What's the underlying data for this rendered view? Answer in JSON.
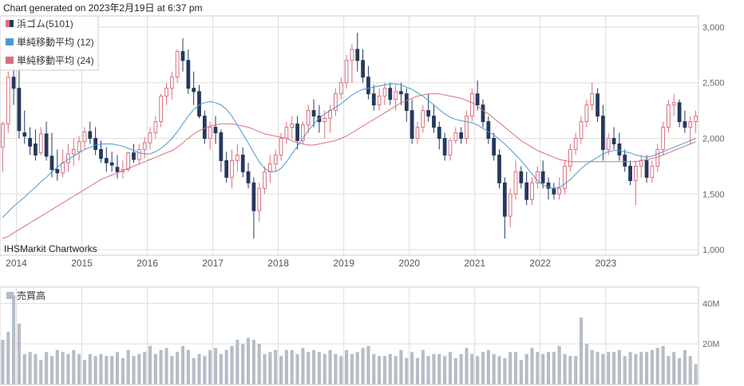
{
  "header": {
    "generated": "Chart generated on 2023年2月19日 at 6:37 pm"
  },
  "watermark": "IHSMarkit Chartworks",
  "colors": {
    "up": "#d9707e",
    "down": "#26385e",
    "ma12": "#4a9ad0",
    "ma24": "#d9707e",
    "volume": "#b5bdc6",
    "grid": "#dddddd",
    "axis": "#9a9a9a"
  },
  "chart_data": [
    {
      "type": "candlestick",
      "interval": "monthly",
      "legend_position": "top-left",
      "legend": {
        "price": "浜ゴム(5101)",
        "ma12": "単純移動平均 (12)",
        "ma24": "単純移動平均 (24)"
      },
      "x_labels": [
        "2014",
        "2015",
        "2016",
        "2017",
        "2018",
        "2019",
        "2020",
        "2021",
        "2022",
        "2023"
      ],
      "y_ticks": [
        1000,
        1500,
        2000,
        2500,
        3000
      ],
      "y_tick_labels": [
        "1,000",
        "1,500",
        "2,000",
        "2,500",
        "3,000"
      ],
      "ylim": [
        950,
        3100
      ],
      "grid": true,
      "candles": [
        [
          1920,
          2150,
          1700,
          2130
        ],
        [
          2130,
          2600,
          2050,
          2550
        ],
        [
          2550,
          2800,
          2300,
          2450
        ],
        [
          2450,
          2650,
          2000,
          2070
        ],
        [
          2050,
          2250,
          1950,
          2020
        ],
        [
          2000,
          2100,
          1850,
          1930
        ],
        [
          1950,
          2080,
          1800,
          1850
        ],
        [
          1870,
          2100,
          1850,
          2040
        ],
        [
          2040,
          2150,
          1800,
          1840
        ],
        [
          1840,
          2050,
          1650,
          1720
        ],
        [
          1720,
          1900,
          1620,
          1690
        ],
        [
          1690,
          1900,
          1650,
          1780
        ],
        [
          1780,
          1950,
          1700,
          1860
        ],
        [
          1860,
          2000,
          1750,
          1900
        ],
        [
          1880,
          2020,
          1800,
          1970
        ],
        [
          1970,
          2100,
          1900,
          2060
        ],
        [
          2060,
          2150,
          1950,
          2000
        ],
        [
          2000,
          2100,
          1850,
          1900
        ],
        [
          1900,
          1980,
          1780,
          1820
        ],
        [
          1820,
          1920,
          1700,
          1780
        ],
        [
          1780,
          1880,
          1700,
          1760
        ],
        [
          1740,
          1850,
          1640,
          1700
        ],
        [
          1700,
          1800,
          1640,
          1720
        ],
        [
          1720,
          1880,
          1700,
          1870
        ],
        [
          1870,
          1950,
          1780,
          1810
        ],
        [
          1810,
          1950,
          1760,
          1900
        ],
        [
          1900,
          2010,
          1820,
          1960
        ],
        [
          1960,
          2100,
          1900,
          2050
        ],
        [
          2050,
          2200,
          2000,
          2150
        ],
        [
          2150,
          2400,
          2100,
          2380
        ],
        [
          2380,
          2500,
          2300,
          2450
        ],
        [
          2450,
          2600,
          2350,
          2550
        ],
        [
          2550,
          2800,
          2500,
          2780
        ],
        [
          2780,
          2900,
          2600,
          2700
        ],
        [
          2700,
          2800,
          2400,
          2450
        ],
        [
          2450,
          2600,
          2300,
          2420
        ],
        [
          2420,
          2480,
          2180,
          2200
        ],
        [
          2200,
          2250,
          1950,
          2000
        ],
        [
          2000,
          2150,
          1900,
          2100
        ],
        [
          2100,
          2200,
          1950,
          2050
        ],
        [
          2050,
          2080,
          1700,
          1800
        ],
        [
          1800,
          1880,
          1600,
          1650
        ],
        [
          1650,
          1900,
          1550,
          1800
        ],
        [
          1800,
          1950,
          1700,
          1850
        ],
        [
          1850,
          1920,
          1650,
          1700
        ],
        [
          1700,
          1780,
          1550,
          1600
        ],
        [
          1600,
          1650,
          1100,
          1350
        ],
        [
          1350,
          1600,
          1250,
          1550
        ],
        [
          1550,
          1750,
          1500,
          1700
        ],
        [
          1700,
          1850,
          1600,
          1770
        ],
        [
          1770,
          1900,
          1700,
          1850
        ],
        [
          1850,
          2050,
          1800,
          2000
        ],
        [
          2000,
          2150,
          1950,
          2100
        ],
        [
          2100,
          2200,
          2000,
          2130
        ],
        [
          2130,
          2200,
          1900,
          1980
        ],
        [
          1980,
          2150,
          1950,
          2120
        ],
        [
          2120,
          2300,
          2050,
          2250
        ],
        [
          2250,
          2350,
          2100,
          2200
        ],
        [
          2200,
          2300,
          2050,
          2150
        ],
        [
          2150,
          2250,
          2000,
          2180
        ],
        [
          2180,
          2300,
          2050,
          2250
        ],
        [
          2250,
          2450,
          2200,
          2400
        ],
        [
          2400,
          2550,
          2350,
          2500
        ],
        [
          2500,
          2750,
          2450,
          2700
        ],
        [
          2700,
          2850,
          2500,
          2800
        ],
        [
          2800,
          2950,
          2600,
          2700
        ],
        [
          2700,
          2800,
          2500,
          2550
        ],
        [
          2550,
          2650,
          2350,
          2400
        ],
        [
          2400,
          2480,
          2250,
          2300
        ],
        [
          2300,
          2450,
          2250,
          2380
        ],
        [
          2380,
          2500,
          2300,
          2450
        ],
        [
          2450,
          2500,
          2300,
          2350
        ],
        [
          2350,
          2480,
          2250,
          2420
        ],
        [
          2420,
          2500,
          2300,
          2400
        ],
        [
          2400,
          2450,
          2150,
          2250
        ],
        [
          2250,
          2350,
          1950,
          2000
        ],
        [
          2000,
          2150,
          1950,
          2100
        ],
        [
          2100,
          2300,
          2050,
          2250
        ],
        [
          2250,
          2400,
          2150,
          2200
        ],
        [
          2200,
          2300,
          2050,
          2100
        ],
        [
          2100,
          2150,
          1900,
          2000
        ],
        [
          2000,
          2050,
          1800,
          1850
        ],
        [
          1850,
          2000,
          1800,
          1980
        ],
        [
          1980,
          2100,
          1950,
          2050
        ],
        [
          2050,
          2100,
          1950,
          2000
        ],
        [
          2000,
          2250,
          1950,
          2200
        ],
        [
          2200,
          2450,
          2150,
          2400
        ],
        [
          2400,
          2520,
          2250,
          2300
        ],
        [
          2300,
          2350,
          2100,
          2150
        ],
        [
          2150,
          2200,
          1950,
          2000
        ],
        [
          2000,
          2050,
          1800,
          1850
        ],
        [
          1850,
          1900,
          1550,
          1600
        ],
        [
          1600,
          1650,
          1100,
          1300
        ],
        [
          1300,
          1550,
          1200,
          1500
        ],
        [
          1500,
          1800,
          1450,
          1700
        ],
        [
          1700,
          1750,
          1550,
          1600
        ],
        [
          1600,
          1700,
          1400,
          1450
        ],
        [
          1450,
          1650,
          1400,
          1600
        ],
        [
          1600,
          1750,
          1550,
          1700
        ],
        [
          1700,
          1800,
          1550,
          1600
        ],
        [
          1600,
          1650,
          1450,
          1550
        ],
        [
          1550,
          1600,
          1450,
          1500
        ],
        [
          1500,
          1650,
          1450,
          1550
        ],
        [
          1550,
          1800,
          1500,
          1750
        ],
        [
          1750,
          1950,
          1700,
          1900
        ],
        [
          1900,
          2050,
          1850,
          2000
        ],
        [
          2000,
          2200,
          1950,
          2150
        ],
        [
          2150,
          2350,
          2100,
          2300
        ],
        [
          2300,
          2500,
          2250,
          2400
        ],
        [
          2400,
          2450,
          2150,
          2200
        ],
        [
          2200,
          2300,
          1800,
          1900
        ],
        [
          1900,
          2050,
          1850,
          2000
        ],
        [
          2000,
          2100,
          1900,
          1950
        ],
        [
          1950,
          2050,
          1800,
          1850
        ],
        [
          1850,
          1900,
          1700,
          1750
        ],
        [
          1750,
          1800,
          1580,
          1620
        ],
        [
          1620,
          1800,
          1400,
          1750
        ],
        [
          1750,
          1850,
          1650,
          1800
        ],
        [
          1800,
          1850,
          1600,
          1650
        ],
        [
          1650,
          1800,
          1600,
          1750
        ],
        [
          1750,
          1950,
          1700,
          1900
        ],
        [
          1900,
          2150,
          1850,
          2100
        ],
        [
          2100,
          2350,
          2050,
          2300
        ],
        [
          2300,
          2400,
          2200,
          2320
        ],
        [
          2320,
          2350,
          2100,
          2150
        ],
        [
          2150,
          2250,
          2050,
          2100
        ],
        [
          2100,
          2200,
          1950,
          2150
        ],
        [
          2150,
          2250,
          2050,
          2200
        ]
      ],
      "ma12": [
        1290,
        1340,
        1390,
        1430,
        1470,
        1520,
        1560,
        1610,
        1650,
        1700,
        1740,
        1780,
        1810,
        1840,
        1870,
        1900,
        1920,
        1940,
        1950,
        1950,
        1950,
        1940,
        1930,
        1910,
        1890,
        1870,
        1860,
        1860,
        1880,
        1910,
        1950,
        2000,
        2060,
        2130,
        2200,
        2260,
        2300,
        2320,
        2330,
        2320,
        2300,
        2260,
        2200,
        2120,
        2040,
        1960,
        1870,
        1790,
        1730,
        1700,
        1700,
        1730,
        1790,
        1860,
        1930,
        2000,
        2070,
        2130,
        2180,
        2220,
        2250,
        2280,
        2310,
        2350,
        2390,
        2420,
        2440,
        2450,
        2460,
        2470,
        2480,
        2490,
        2490,
        2480,
        2460,
        2440,
        2410,
        2380,
        2340,
        2300,
        2260,
        2220,
        2190,
        2170,
        2160,
        2150,
        2140,
        2120,
        2090,
        2060,
        2030,
        1990,
        1950,
        1900,
        1850,
        1800,
        1740,
        1680,
        1620,
        1580,
        1560,
        1550,
        1560,
        1590,
        1630,
        1680,
        1730,
        1770,
        1800,
        1830,
        1860,
        1880,
        1890,
        1890,
        1880,
        1870,
        1850,
        1840,
        1830,
        1840,
        1860,
        1880,
        1900,
        1920,
        1940,
        1960,
        1980,
        2000
      ],
      "ma24": [
        1100,
        1120,
        1150,
        1180,
        1210,
        1240,
        1270,
        1300,
        1330,
        1360,
        1390,
        1420,
        1450,
        1480,
        1510,
        1540,
        1570,
        1600,
        1630,
        1650,
        1670,
        1690,
        1710,
        1730,
        1750,
        1770,
        1790,
        1810,
        1830,
        1850,
        1870,
        1890,
        1920,
        1960,
        2000,
        2040,
        2070,
        2090,
        2110,
        2120,
        2130,
        2130,
        2130,
        2120,
        2110,
        2100,
        2080,
        2060,
        2040,
        2030,
        2020,
        2010,
        2000,
        1980,
        1960,
        1950,
        1940,
        1940,
        1950,
        1960,
        1970,
        1980,
        2000,
        2020,
        2050,
        2080,
        2110,
        2140,
        2170,
        2200,
        2230,
        2260,
        2290,
        2320,
        2340,
        2360,
        2380,
        2390,
        2400,
        2400,
        2400,
        2390,
        2380,
        2370,
        2360,
        2340,
        2320,
        2290,
        2250,
        2220,
        2180,
        2140,
        2100,
        2060,
        2020,
        1980,
        1950,
        1920,
        1890,
        1870,
        1850,
        1830,
        1810,
        1800,
        1790,
        1790,
        1790,
        1790,
        1790,
        1790,
        1790,
        1790,
        1790,
        1790,
        1790,
        1790,
        1790,
        1800,
        1810,
        1820,
        1830,
        1850,
        1870,
        1890,
        1910,
        1930,
        1950,
        1970
      ]
    },
    {
      "type": "bar",
      "title": "売買高",
      "y_ticks": [
        20,
        40
      ],
      "y_tick_labels": [
        "20M",
        "40M"
      ],
      "ylim": [
        0,
        48
      ],
      "values": [
        22,
        26,
        44,
        30,
        15,
        16,
        15,
        12,
        16,
        14,
        17,
        16,
        15,
        17,
        15,
        12,
        15,
        14,
        15,
        14,
        14,
        16,
        13,
        17,
        14,
        15,
        16,
        19,
        15,
        17,
        18,
        14,
        16,
        19,
        17,
        13,
        15,
        14,
        17,
        18,
        15,
        17,
        19,
        22,
        20,
        23,
        22,
        20,
        15,
        16,
        17,
        14,
        17,
        17,
        15,
        18,
        16,
        17,
        16,
        15,
        17,
        15,
        14,
        17,
        15,
        16,
        18,
        19,
        15,
        14,
        14,
        15,
        14,
        17,
        13,
        16,
        13,
        17,
        14,
        15,
        15,
        14,
        16,
        13,
        15,
        18,
        15,
        14,
        16,
        17,
        15,
        14,
        13,
        16,
        16,
        12,
        15,
        18,
        16,
        15,
        16,
        16,
        19,
        15,
        14,
        14,
        33,
        20,
        17,
        16,
        15,
        16,
        16,
        17,
        14,
        16,
        15,
        16,
        16,
        17,
        18,
        19,
        14,
        16,
        13,
        17,
        14,
        10
      ]
    }
  ]
}
